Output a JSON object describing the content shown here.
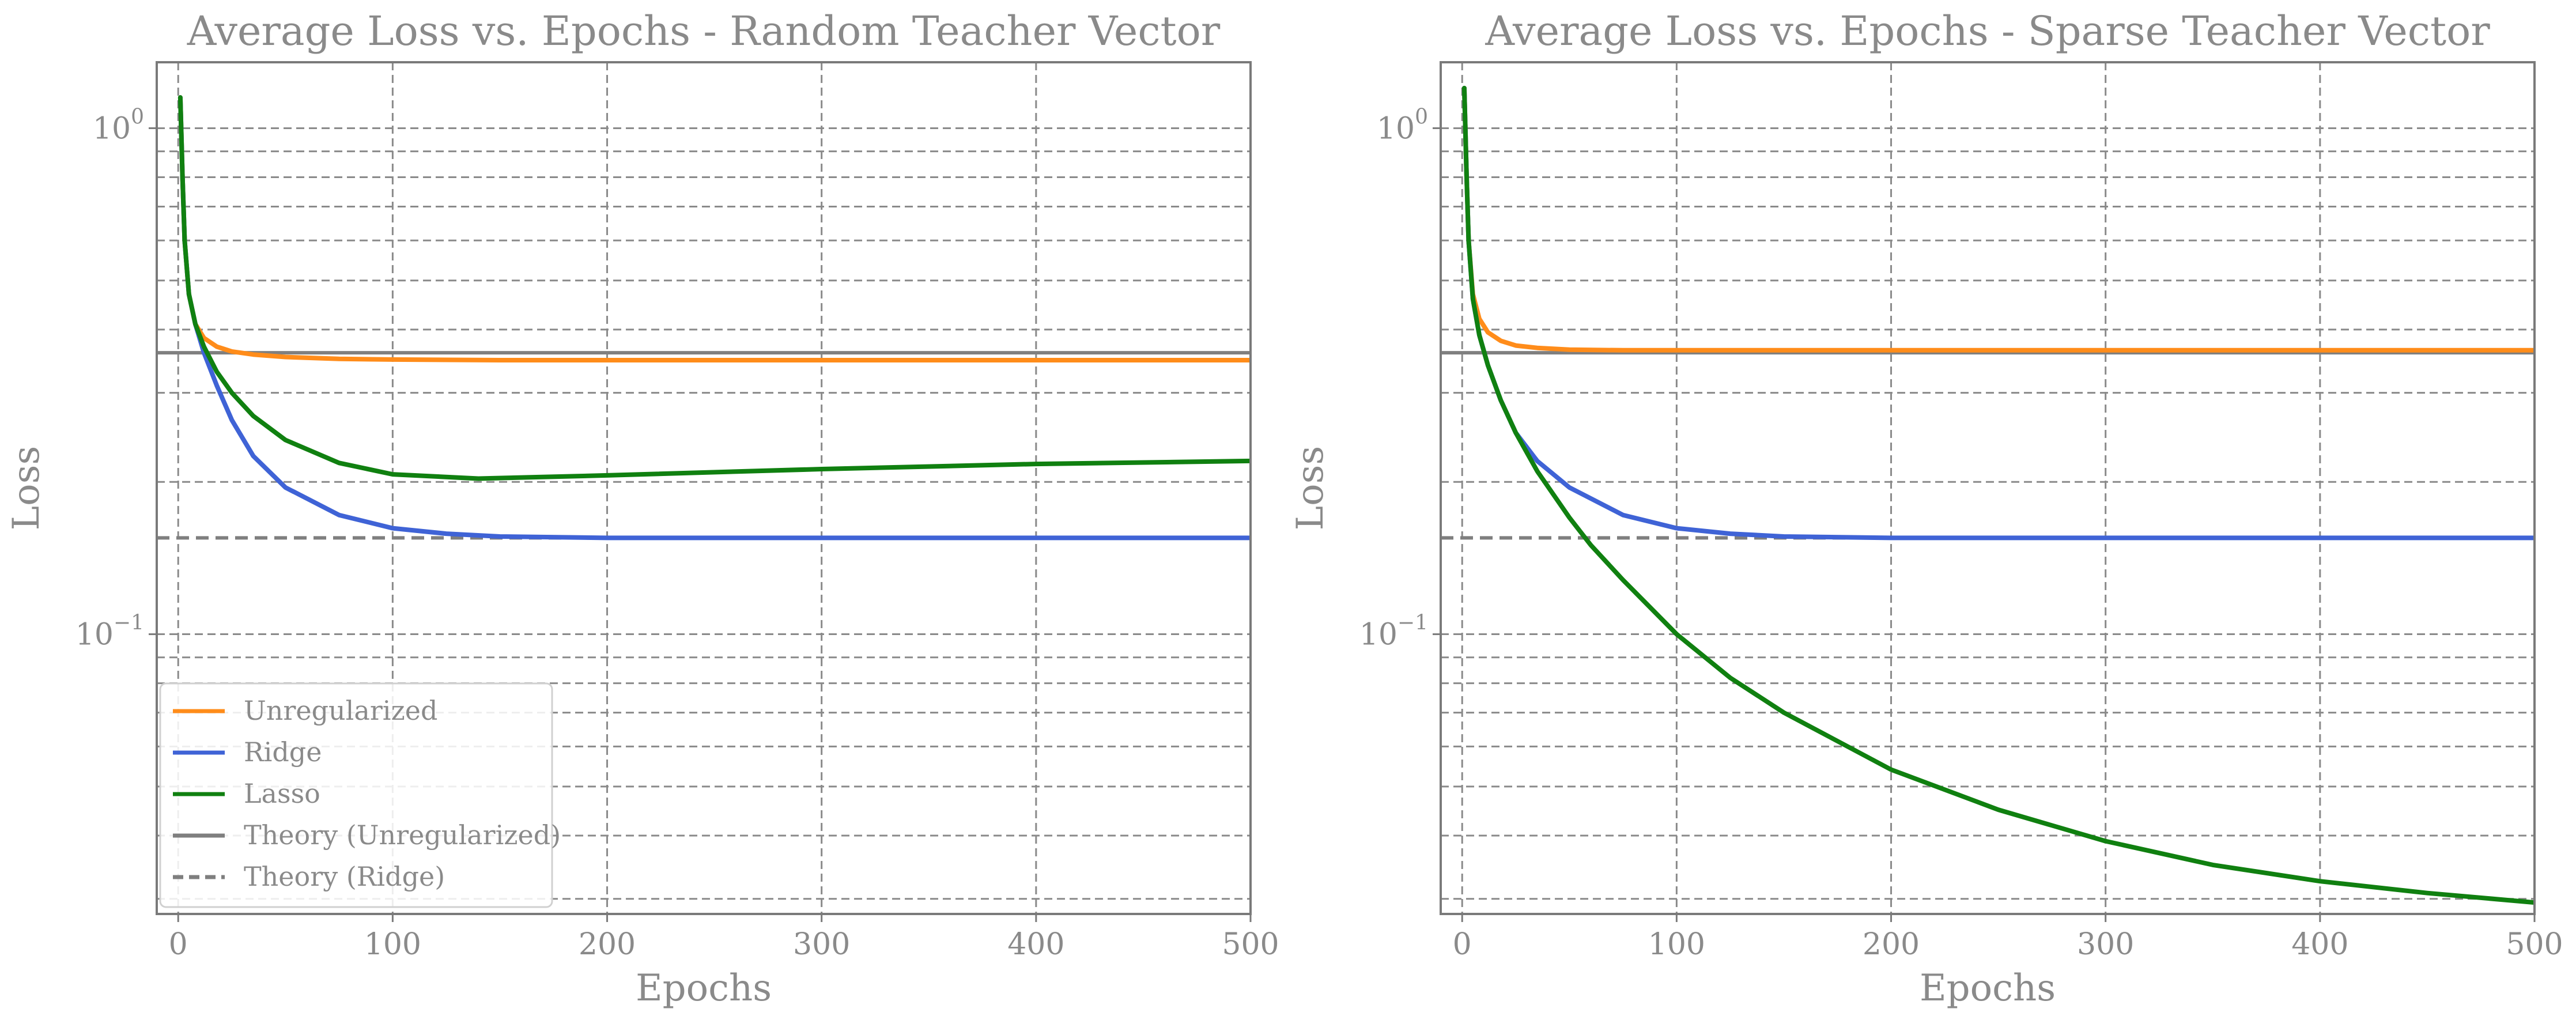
{
  "figure": {
    "legend": {
      "entries": [
        {
          "label": "Unregularized",
          "color": "#ff8c1a",
          "style": "solid"
        },
        {
          "label": "Ridge",
          "color": "#3f63d6",
          "style": "solid"
        },
        {
          "label": "Lasso",
          "color": "#108010",
          "style": "solid"
        },
        {
          "label": "Theory (Unregularized)",
          "color": "#7f7f7f",
          "style": "solid"
        },
        {
          "label": "Theory (Ridge)",
          "color": "#7f7f7f",
          "style": "dashed"
        }
      ]
    }
  },
  "chart_data": [
    {
      "type": "line",
      "title": "Average Loss vs. Epochs - Random Teacher Vector",
      "xlabel": "Epochs",
      "ylabel": "Loss",
      "xscale": "linear",
      "yscale": "log",
      "xlim": [
        -10,
        500
      ],
      "ylim": [
        0.028,
        1.35
      ],
      "xticks": [
        0,
        100,
        200,
        300,
        400,
        500
      ],
      "yticks": [
        {
          "value": 1.0,
          "base": "10",
          "exp": "0"
        },
        {
          "value": 0.1,
          "base": "10",
          "exp": "−1"
        }
      ],
      "grid": true,
      "legend_position": "lower-left",
      "series": [
        {
          "name": "Unregularized",
          "color": "#ff8c1a",
          "x": [
            1,
            2,
            3,
            5,
            8,
            12,
            18,
            25,
            35,
            50,
            75,
            100,
            150,
            200,
            300,
            400,
            500
          ],
          "y": [
            1.15,
            0.8,
            0.6,
            0.47,
            0.41,
            0.385,
            0.37,
            0.362,
            0.357,
            0.353,
            0.35,
            0.349,
            0.348,
            0.348,
            0.348,
            0.348,
            0.348
          ]
        },
        {
          "name": "Ridge",
          "color": "#3f63d6",
          "x": [
            1,
            2,
            3,
            5,
            8,
            12,
            18,
            25,
            35,
            50,
            75,
            100,
            125,
            150,
            200,
            300,
            400,
            500
          ],
          "y": [
            1.15,
            0.8,
            0.6,
            0.47,
            0.41,
            0.36,
            0.31,
            0.265,
            0.225,
            0.195,
            0.172,
            0.162,
            0.158,
            0.156,
            0.155,
            0.155,
            0.155,
            0.155
          ]
        },
        {
          "name": "Lasso",
          "color": "#108010",
          "x": [
            1,
            2,
            3,
            5,
            8,
            12,
            18,
            25,
            35,
            50,
            75,
            100,
            140,
            200,
            300,
            400,
            500
          ],
          "y": [
            1.15,
            0.8,
            0.6,
            0.47,
            0.41,
            0.37,
            0.33,
            0.3,
            0.27,
            0.242,
            0.218,
            0.207,
            0.203,
            0.206,
            0.212,
            0.217,
            0.22
          ]
        },
        {
          "name": "Theory (Unregularized)",
          "color": "#7f7f7f",
          "dashed": false,
          "x": [
            -10,
            500
          ],
          "y": [
            0.36,
            0.36
          ]
        },
        {
          "name": "Theory (Ridge)",
          "color": "#7f7f7f",
          "dashed": true,
          "x": [
            -10,
            500
          ],
          "y": [
            0.155,
            0.155
          ]
        }
      ]
    },
    {
      "type": "line",
      "title": "Average Loss vs. Epochs - Sparse Teacher Vector",
      "xlabel": "Epochs",
      "ylabel": "Loss",
      "xscale": "linear",
      "yscale": "log",
      "xlim": [
        -10,
        500
      ],
      "ylim": [
        0.028,
        1.35
      ],
      "xticks": [
        0,
        100,
        200,
        300,
        400,
        500
      ],
      "yticks": [
        {
          "value": 1.0,
          "base": "10",
          "exp": "0"
        },
        {
          "value": 0.1,
          "base": "10",
          "exp": "−1"
        }
      ],
      "grid": true,
      "legend_position": "none",
      "series": [
        {
          "name": "Unregularized",
          "color": "#ff8c1a",
          "x": [
            1,
            2,
            3,
            5,
            8,
            12,
            18,
            25,
            35,
            50,
            75,
            100,
            150,
            200,
            300,
            400,
            500
          ],
          "y": [
            1.2,
            0.82,
            0.6,
            0.47,
            0.42,
            0.395,
            0.38,
            0.372,
            0.368,
            0.365,
            0.364,
            0.364,
            0.364,
            0.364,
            0.364,
            0.364,
            0.364
          ]
        },
        {
          "name": "Ridge",
          "color": "#3f63d6",
          "x": [
            1,
            2,
            3,
            5,
            8,
            12,
            18,
            25,
            35,
            50,
            75,
            100,
            125,
            150,
            200,
            300,
            400,
            500
          ],
          "y": [
            1.2,
            0.82,
            0.6,
            0.46,
            0.39,
            0.34,
            0.29,
            0.25,
            0.22,
            0.195,
            0.172,
            0.162,
            0.158,
            0.156,
            0.155,
            0.155,
            0.155,
            0.155
          ]
        },
        {
          "name": "Lasso",
          "color": "#108010",
          "x": [
            1,
            2,
            3,
            5,
            8,
            12,
            18,
            25,
            35,
            50,
            60,
            75,
            100,
            125,
            150,
            200,
            250,
            300,
            350,
            400,
            450,
            500
          ],
          "y": [
            1.2,
            0.82,
            0.6,
            0.46,
            0.39,
            0.34,
            0.29,
            0.25,
            0.21,
            0.17,
            0.15,
            0.128,
            0.1,
            0.082,
            0.07,
            0.054,
            0.045,
            0.039,
            0.035,
            0.0325,
            0.0308,
            0.0295
          ]
        },
        {
          "name": "Theory (Unregularized)",
          "color": "#7f7f7f",
          "dashed": false,
          "x": [
            -10,
            500
          ],
          "y": [
            0.36,
            0.36
          ]
        },
        {
          "name": "Theory (Ridge)",
          "color": "#7f7f7f",
          "dashed": true,
          "x": [
            -10,
            500
          ],
          "y": [
            0.155,
            0.155
          ]
        }
      ]
    }
  ]
}
